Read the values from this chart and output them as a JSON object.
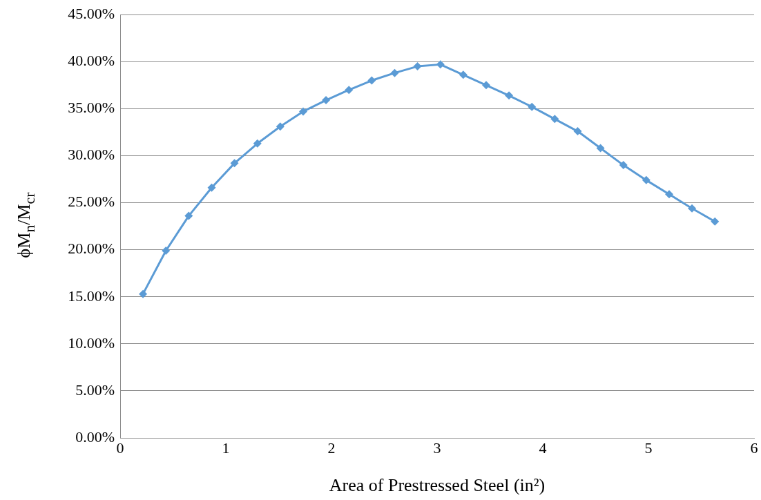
{
  "chart_data": {
    "type": "line",
    "xlabel": "Area of Prestressed Steel (in²)",
    "ylabel": "ϕM$_{n}$/M$_{cr}$",
    "x": [
      0.216,
      0.433,
      0.649,
      0.866,
      1.082,
      1.299,
      1.515,
      1.732,
      1.948,
      2.165,
      2.381,
      2.598,
      2.814,
      3.031,
      3.247,
      3.464,
      3.68,
      3.897,
      4.113,
      4.33,
      4.546,
      4.763,
      4.979,
      5.196,
      5.412,
      5.629
    ],
    "series": [
      {
        "color": "#5b9bd5",
        "values": [
          15.3,
          19.9,
          23.6,
          26.6,
          29.2,
          31.3,
          33.1,
          34.7,
          35.9,
          37.0,
          38.0,
          38.8,
          39.5,
          39.7,
          38.6,
          37.5,
          36.4,
          35.2,
          33.9,
          32.6,
          30.8,
          29.0,
          27.4,
          25.9,
          24.4,
          23.0
        ]
      }
    ],
    "xlim": [
      0,
      6
    ],
    "xticks": [
      0,
      1,
      2,
      3,
      4,
      5,
      6
    ],
    "ylim": [
      0,
      45
    ],
    "yticks": [
      {
        "value": 0,
        "label": "0.00%"
      },
      {
        "value": 5,
        "label": "5.00%"
      },
      {
        "value": 10,
        "label": "10.00%"
      },
      {
        "value": 15,
        "label": "15.00%"
      },
      {
        "value": 20,
        "label": "20.00%"
      },
      {
        "value": 25,
        "label": "25.00%"
      },
      {
        "value": 30,
        "label": "30.00%"
      },
      {
        "value": 35,
        "label": "35.00%"
      },
      {
        "value": 40,
        "label": "40.00%"
      },
      {
        "value": 45,
        "label": "45.00%"
      }
    ],
    "grid": "y",
    "legend": false,
    "marker": "diamond",
    "line_style": "solid"
  }
}
